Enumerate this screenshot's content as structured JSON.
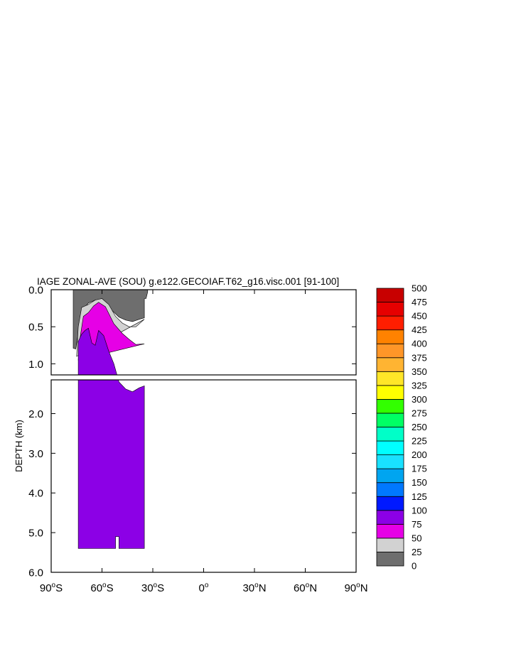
{
  "chart_data": {
    "type": "heatmap",
    "title": "IAGE ZONAL-AVE (SOU) g.e122.GECOIAF.T62_g16.visc.001 [91-100]",
    "ylabel": "DEPTH (km)",
    "xlabel": "",
    "x_range": [
      -90,
      90
    ],
    "x_ticks": [
      {
        "value": -90,
        "num": "90",
        "hemi": "S"
      },
      {
        "value": -60,
        "num": "60",
        "hemi": "S"
      },
      {
        "value": -30,
        "num": "30",
        "hemi": "S"
      },
      {
        "value": 0,
        "num": "0",
        "hemi": ""
      },
      {
        "value": 30,
        "num": "30",
        "hemi": "N"
      },
      {
        "value": 60,
        "num": "60",
        "hemi": "N"
      },
      {
        "value": 90,
        "num": "90",
        "hemi": "N"
      }
    ],
    "upper_panel": {
      "depth_range": [
        0,
        1.15
      ],
      "y_ticks": [
        "0.0",
        "0.5",
        "1.0"
      ],
      "y_values": [
        0,
        0.5,
        1.0
      ]
    },
    "lower_panel": {
      "depth_range": [
        1.15,
        6.0
      ],
      "y_ticks": [
        "2.0",
        "3.0",
        "4.0",
        "5.0",
        "6.0"
      ],
      "y_values": [
        2,
        3,
        4,
        5,
        6
      ]
    },
    "levels": [
      "0",
      "25",
      "50",
      "75",
      "100",
      "125",
      "150",
      "175",
      "200",
      "225",
      "250",
      "275",
      "300",
      "325",
      "350",
      "375",
      "400",
      "425",
      "450",
      "475",
      "500"
    ],
    "colors": [
      "#6e6e6e",
      "#d2d2d2",
      "#e600e6",
      "#8c00e6",
      "#0019ff",
      "#0078ff",
      "#00a5f0",
      "#19e1ff",
      "#00ffff",
      "#00ffc8",
      "#00ff64",
      "#32ff00",
      "#ffff00",
      "#ffe628",
      "#ffb432",
      "#ff9628",
      "#ff8200",
      "#ff1e00",
      "#e60000",
      "#c80000"
    ],
    "contours": [
      {
        "level": "0-25",
        "color": "#6e6e6e",
        "lat": [
          -77,
          -77,
          -75.5,
          -72,
          -68,
          -64,
          -60,
          -55,
          -50,
          -46,
          -42,
          -38,
          -35,
          -35,
          -34,
          -33,
          -33
        ],
        "depth": [
          0.0,
          0.79,
          0.8,
          0.29,
          0.18,
          0.14,
          0.14,
          0.26,
          0.37,
          0.41,
          0.43,
          0.4,
          0.38,
          0.12,
          0.12,
          0.03,
          0.0
        ]
      },
      {
        "level": "25-50",
        "color": "#d2d2d2",
        "lat": [
          -75,
          -74,
          -72,
          -68,
          -64,
          -60,
          -56,
          -52,
          -48,
          -44,
          -40,
          -35
        ],
        "depth": [
          0.9,
          0.5,
          0.24,
          0.2,
          0.14,
          0.12,
          0.2,
          0.36,
          0.45,
          0.5,
          0.5,
          0.4
        ]
      },
      {
        "level": "50-75",
        "color": "#e600e6",
        "lat": [
          -74,
          -73,
          -71,
          -68,
          -65,
          -62,
          -58,
          -53,
          -48,
          -44,
          -40,
          -35
        ],
        "depth": [
          0.95,
          0.66,
          0.36,
          0.31,
          0.22,
          0.17,
          0.23,
          0.46,
          0.59,
          0.67,
          0.74,
          0.73
        ]
      },
      {
        "level": "75-100",
        "color": "#8c00e6",
        "lat": [
          -74,
          -72,
          -70,
          -68,
          -66,
          -64,
          -62,
          -59,
          -56,
          -53,
          -50,
          -46,
          -42,
          -38,
          -35,
          -35,
          -50,
          -50,
          -52,
          -52,
          -56,
          -56,
          -74
        ],
        "depth": [
          0.7,
          0.6,
          0.55,
          0.52,
          0.72,
          0.75,
          0.55,
          0.62,
          0.83,
          1.0,
          1.2,
          1.38,
          1.45,
          1.35,
          1.3,
          5.4,
          5.4,
          5.1,
          5.1,
          5.4,
          5.4,
          5.4,
          5.4
        ]
      }
    ]
  }
}
